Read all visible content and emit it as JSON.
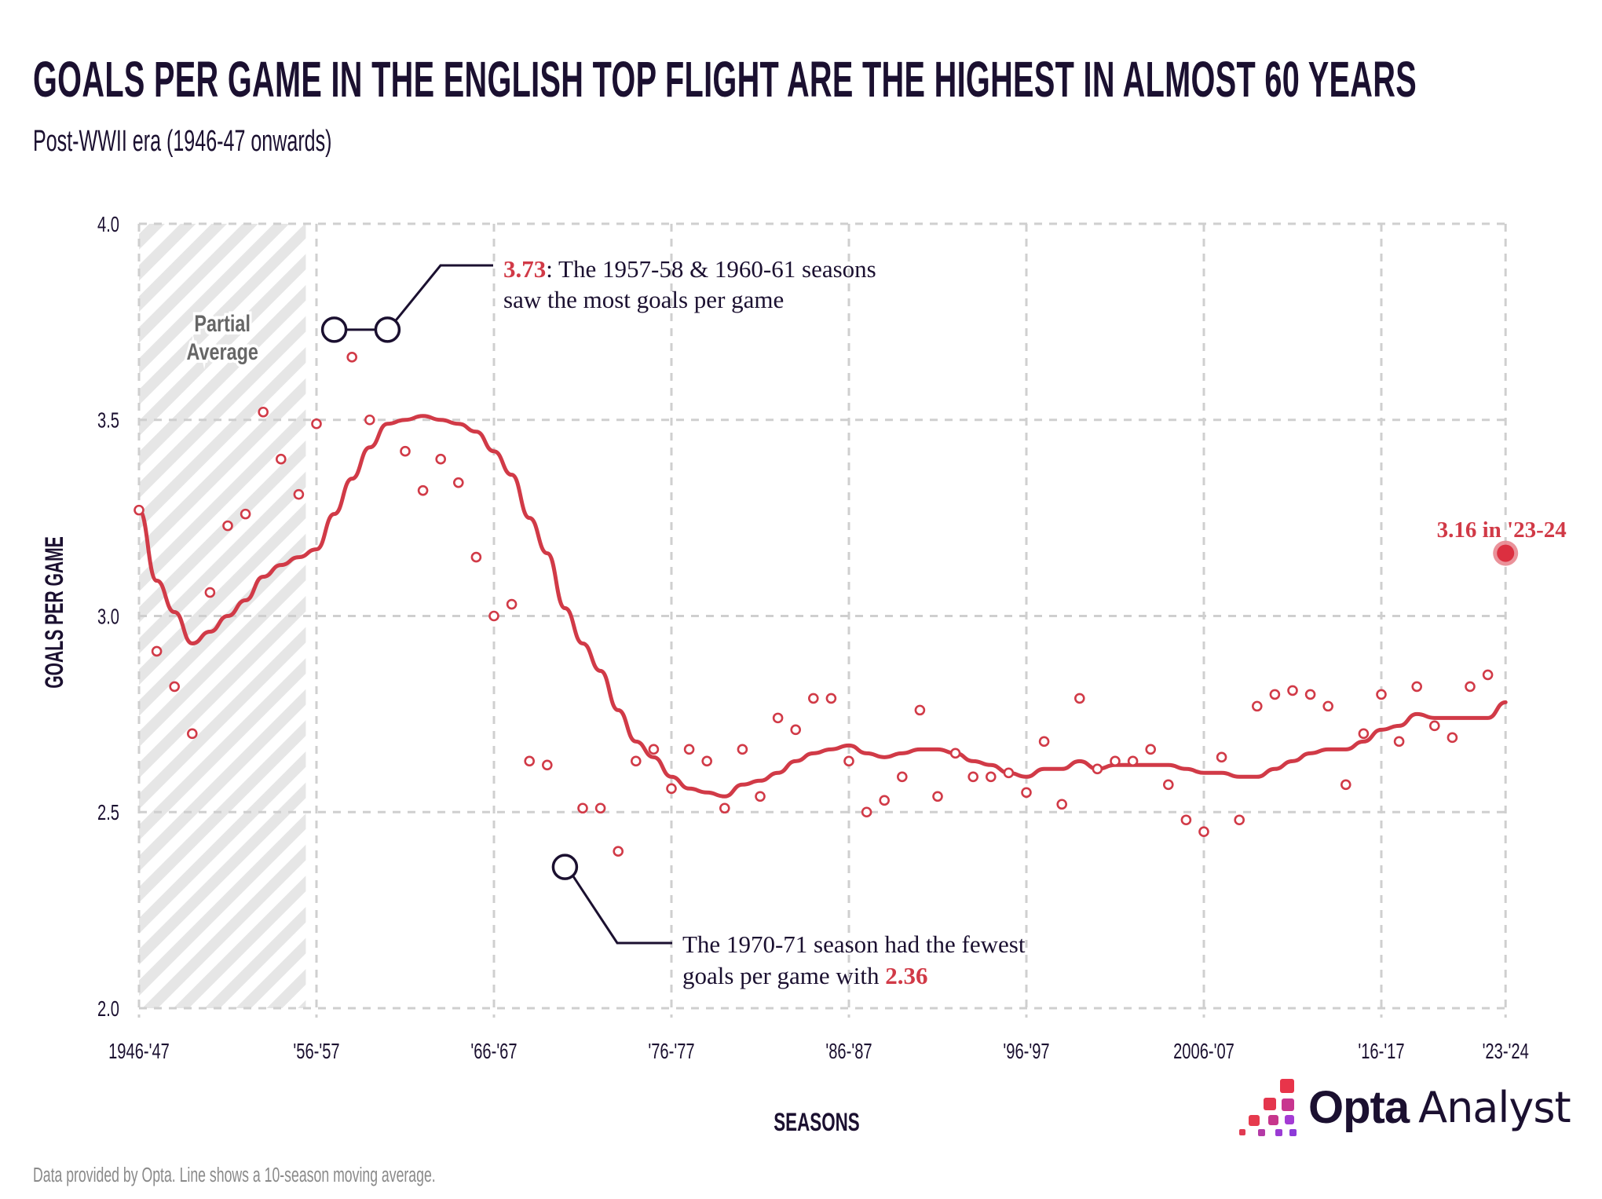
{
  "header": {
    "title": "GOALS PER GAME IN THE ENGLISH TOP FLIGHT ARE THE HIGHEST IN ALMOST 60 YEARS",
    "subtitle": "Post-WWII era (1946-47 onwards)"
  },
  "colors": {
    "text_dark": "#1b1030",
    "accent_red": "#d13a47",
    "highlight_halo": "#e8868f",
    "grid": "#cfcfcf",
    "hatch": "#e6e6e6",
    "muted": "#8a8a8a"
  },
  "chart_data": {
    "type": "scatter",
    "title": "GOALS PER GAME IN THE ENGLISH TOP FLIGHT ARE THE HIGHEST IN ALMOST 60 YEARS",
    "subtitle": "Post-WWII era (1946-47 onwards)",
    "xlabel": "SEASONS",
    "ylabel": "GOALS PER GAME",
    "ylim": [
      2.0,
      4.0
    ],
    "yticks": [
      {
        "value": 4.0,
        "label": "4.0"
      },
      {
        "value": 3.5,
        "label": "3.5"
      },
      {
        "value": 3.0,
        "label": "3.0"
      },
      {
        "value": 2.5,
        "label": "2.5"
      },
      {
        "value": 2.0,
        "label": "2.0"
      }
    ],
    "xticks": [
      {
        "index": 0,
        "label": "1946-'47"
      },
      {
        "index": 10,
        "label": "'56-'57"
      },
      {
        "index": 20,
        "label": "'66-'67"
      },
      {
        "index": 30,
        "label": "'76-'77"
      },
      {
        "index": 40,
        "label": "'86-'87"
      },
      {
        "index": 50,
        "label": "'96-'97"
      },
      {
        "index": 60,
        "label": "2006-'07"
      },
      {
        "index": 70,
        "label": "'16-'17"
      },
      {
        "index": 77,
        "label": "'23-'24"
      }
    ],
    "grid": true,
    "first_season": "1946-47",
    "last_season": "2023-24",
    "series": [
      {
        "name": "Goals per game (season)",
        "type": "scatter",
        "values": [
          3.27,
          2.91,
          2.82,
          2.7,
          3.06,
          3.23,
          3.26,
          3.52,
          3.4,
          3.31,
          3.49,
          3.73,
          3.66,
          3.5,
          3.73,
          3.42,
          3.32,
          3.4,
          3.34,
          3.15,
          3.0,
          3.03,
          2.63,
          2.62,
          2.36,
          2.51,
          2.51,
          2.4,
          2.63,
          2.66,
          2.56,
          2.66,
          2.63,
          2.51,
          2.66,
          2.54,
          2.74,
          2.71,
          2.79,
          2.79,
          2.63,
          2.5,
          2.53,
          2.59,
          2.76,
          2.54,
          2.65,
          2.59,
          2.59,
          2.6,
          2.55,
          2.68,
          2.52,
          2.79,
          2.61,
          2.63,
          2.63,
          2.66,
          2.57,
          2.48,
          2.45,
          2.64,
          2.48,
          2.77,
          2.8,
          2.81,
          2.8,
          2.77,
          2.57,
          2.7,
          2.8,
          2.68,
          2.82,
          2.72,
          2.69,
          2.82,
          2.85,
          3.16
        ]
      },
      {
        "name": "10-season moving average",
        "type": "line",
        "values": [
          3.27,
          3.09,
          3.01,
          2.93,
          2.96,
          3.0,
          3.04,
          3.1,
          3.13,
          3.15,
          3.17,
          3.26,
          3.35,
          3.43,
          3.49,
          3.5,
          3.51,
          3.5,
          3.49,
          3.47,
          3.42,
          3.36,
          3.25,
          3.16,
          3.02,
          2.93,
          2.86,
          2.76,
          2.68,
          2.64,
          2.59,
          2.56,
          2.55,
          2.54,
          2.57,
          2.58,
          2.6,
          2.63,
          2.65,
          2.66,
          2.67,
          2.65,
          2.64,
          2.65,
          2.66,
          2.66,
          2.65,
          2.63,
          2.62,
          2.6,
          2.59,
          2.61,
          2.61,
          2.63,
          2.61,
          2.62,
          2.62,
          2.62,
          2.62,
          2.61,
          2.6,
          2.6,
          2.59,
          2.59,
          2.61,
          2.63,
          2.65,
          2.66,
          2.66,
          2.68,
          2.71,
          2.72,
          2.75,
          2.74,
          2.74,
          2.74,
          2.74,
          2.78
        ]
      }
    ],
    "shaded_region": {
      "label_line1": "Partial",
      "label_line2": "Average",
      "from_index": 0,
      "to_index": 9
    },
    "annotations": [
      {
        "id": "max",
        "indices": [
          11,
          14
        ],
        "highlight": "3.73",
        "text_line1_rest": ": The 1957-58 & 1960-61 seasons",
        "text_line2": "saw the most goals per game"
      },
      {
        "id": "min",
        "indices": [
          24
        ],
        "text_line1": "The 1970-71 season had the fewest",
        "text_line2_prefix": "goals per game with ",
        "highlight": "2.36"
      },
      {
        "id": "latest",
        "indices": [
          77
        ],
        "text": "3.16 in '23-24"
      }
    ],
    "footnote": "Data provided by Opta. Line shows a 10-season moving average."
  },
  "logo": {
    "word_bold": "Opta",
    "word_light": "Analyst",
    "icon": "opta-pixel-steps-icon"
  }
}
